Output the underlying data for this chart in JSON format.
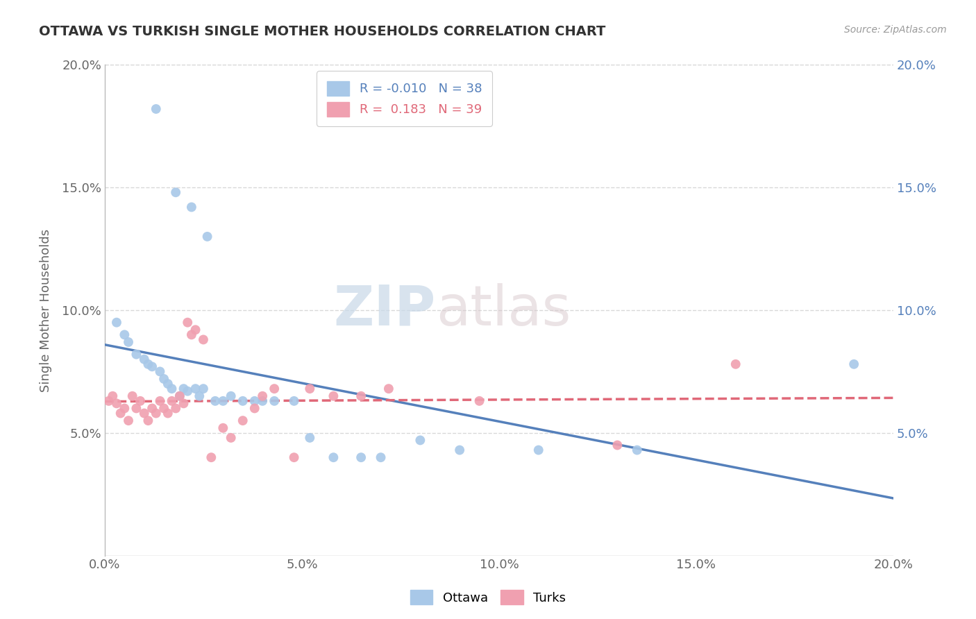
{
  "title": "OTTAWA VS TURKISH SINGLE MOTHER HOUSEHOLDS CORRELATION CHART",
  "source": "Source: ZipAtlas.com",
  "ylabel": "Single Mother Households",
  "xlabel": "",
  "watermark_zip": "ZIP",
  "watermark_atlas": "atlas",
  "legend_ottawa": "Ottawa",
  "legend_turks": "Turks",
  "r_ottawa": "-0.010",
  "n_ottawa": "38",
  "r_turks": "0.183",
  "n_turks": "39",
  "xlim": [
    0.0,
    0.2
  ],
  "ylim": [
    0.0,
    0.2
  ],
  "xticks": [
    0.0,
    0.05,
    0.1,
    0.15,
    0.2
  ],
  "yticks": [
    0.05,
    0.1,
    0.15,
    0.2
  ],
  "color_ottawa": "#a8c8e8",
  "color_turks": "#f0a0b0",
  "color_line_ottawa": "#5580bb",
  "color_line_turks": "#e06878",
  "background_color": "#ffffff",
  "grid_color": "#d8d8d8",
  "ottawa_x": [
    0.013,
    0.018,
    0.022,
    0.026,
    0.003,
    0.005,
    0.006,
    0.008,
    0.01,
    0.011,
    0.012,
    0.014,
    0.015,
    0.016,
    0.017,
    0.019,
    0.02,
    0.021,
    0.023,
    0.024,
    0.025,
    0.028,
    0.03,
    0.032,
    0.035,
    0.038,
    0.04,
    0.043,
    0.048,
    0.052,
    0.058,
    0.065,
    0.07,
    0.08,
    0.09,
    0.11,
    0.135,
    0.19
  ],
  "ottawa_y": [
    0.182,
    0.148,
    0.142,
    0.13,
    0.095,
    0.09,
    0.087,
    0.082,
    0.08,
    0.078,
    0.077,
    0.075,
    0.072,
    0.07,
    0.068,
    0.065,
    0.068,
    0.067,
    0.068,
    0.065,
    0.068,
    0.063,
    0.063,
    0.065,
    0.063,
    0.063,
    0.063,
    0.063,
    0.063,
    0.048,
    0.04,
    0.04,
    0.04,
    0.047,
    0.043,
    0.043,
    0.043,
    0.078
  ],
  "turks_x": [
    0.001,
    0.002,
    0.003,
    0.004,
    0.005,
    0.006,
    0.007,
    0.008,
    0.009,
    0.01,
    0.011,
    0.012,
    0.013,
    0.014,
    0.015,
    0.016,
    0.017,
    0.018,
    0.019,
    0.02,
    0.021,
    0.022,
    0.023,
    0.025,
    0.027,
    0.03,
    0.032,
    0.035,
    0.038,
    0.04,
    0.043,
    0.048,
    0.052,
    0.058,
    0.065,
    0.072,
    0.095,
    0.13,
    0.16
  ],
  "turks_y": [
    0.063,
    0.065,
    0.062,
    0.058,
    0.06,
    0.055,
    0.065,
    0.06,
    0.063,
    0.058,
    0.055,
    0.06,
    0.058,
    0.063,
    0.06,
    0.058,
    0.063,
    0.06,
    0.065,
    0.062,
    0.095,
    0.09,
    0.092,
    0.088,
    0.04,
    0.052,
    0.048,
    0.055,
    0.06,
    0.065,
    0.068,
    0.04,
    0.068,
    0.065,
    0.065,
    0.068,
    0.063,
    0.045,
    0.078
  ]
}
